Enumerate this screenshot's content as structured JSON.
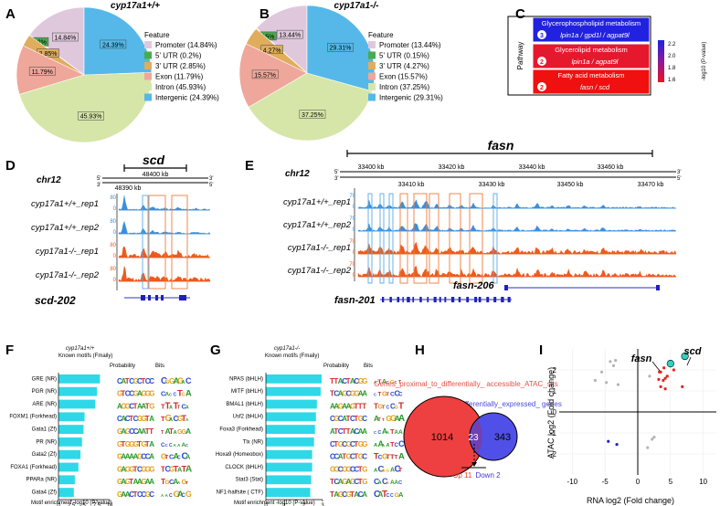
{
  "panels": {
    "A": {
      "letter": "A",
      "title": "cyp17a1+/+",
      "legend_title": "Feature",
      "slices": [
        {
          "label": "Promoter (14.84%)",
          "pct": 14.84,
          "slice_label": "14.84%",
          "color": "#dfc8dc"
        },
        {
          "label": "5' UTR (0.2%)",
          "pct": 0.2,
          "slice_label": "0.2%",
          "color": "#4aaa4e"
        },
        {
          "label": "3' UTR (2.85%)",
          "pct": 2.85,
          "slice_label": "2.85%",
          "color": "#e0ad5d"
        },
        {
          "label": "Exon (11.79%)",
          "pct": 11.79,
          "slice_label": "11.79%",
          "color": "#eea79a"
        },
        {
          "label": "Intron (45.93%)",
          "pct": 45.93,
          "slice_label": "45.93%",
          "color": "#d6e6a8"
        },
        {
          "label": "Intergenic (24.39%)",
          "pct": 24.39,
          "slice_label": "24.39%",
          "color": "#55b8e8"
        }
      ]
    },
    "B": {
      "letter": "B",
      "title": "cyp17a1-/-",
      "legend_title": "Feature",
      "slices": [
        {
          "label": "Promoter (13.44%)",
          "pct": 13.44,
          "slice_label": "13.44%",
          "color": "#dfc8dc"
        },
        {
          "label": "5' UTR (0.15%)",
          "pct": 0.15,
          "slice_label": "0.15%",
          "color": "#4aaa4e"
        },
        {
          "label": "3' UTR (4.27%)",
          "pct": 4.27,
          "slice_label": "4.27%",
          "color": "#e0ad5d"
        },
        {
          "label": "Exon (15.57%)",
          "pct": 15.57,
          "slice_label": "15.57%",
          "color": "#eea79a"
        },
        {
          "label": "Intron (37.25%)",
          "pct": 37.25,
          "slice_label": "37.25%",
          "color": "#d6e6a8"
        },
        {
          "label": "Intergenic (29.31%)",
          "pct": 29.31,
          "slice_label": "29.31%",
          "color": "#55b8e8"
        }
      ]
    },
    "C": {
      "letter": "C",
      "axis_label": "Pathway",
      "colorbar_label": "-log10 (P-value)",
      "colorbar_ticks": [
        "2.2",
        "2.0",
        "1.8",
        "1.6"
      ],
      "rows": [
        {
          "name": "Glycerophospholipid metabolism",
          "count": "3",
          "genes": "lpin1a / gpd1l / agpat9l",
          "color": "#2121e0"
        },
        {
          "name": "Glycerolipid metabolism",
          "count": "2",
          "genes": "lpin1a / agpat9l",
          "color": "#e6182e"
        },
        {
          "name": "Fatty acid metabolism",
          "count": "2",
          "genes": "fasn / scd",
          "color": "#f01010"
        }
      ]
    },
    "D": {
      "letter": "D",
      "gene": "scd",
      "chrom": "chr12",
      "coord_top": "48400 kb",
      "coord_bottom": "48390 kb",
      "strand_top": "5'",
      "strand_bottom": "3'",
      "tracks": [
        {
          "label": "cyp17a1+/+_rep1",
          "scale": "80",
          "color": "#3a8fdc"
        },
        {
          "label": "cyp17a1+/+_rep2",
          "scale": "80",
          "color": "#3a8fdc"
        },
        {
          "label": "cyp17a1-/-_rep1",
          "scale": "80",
          "color": "#ee5a1e"
        },
        {
          "label": "cyp17a1-/-_rep2",
          "scale": "80",
          "color": "#ee5a1e"
        }
      ],
      "transcript": "scd-202"
    },
    "E": {
      "letter": "E",
      "gene": "fasn",
      "chrom": "chr12",
      "top_ticks": [
        "33400 kb",
        "33420 kb",
        "33440 kb",
        "33460 kb"
      ],
      "bottom_ticks": [
        "33410 kb",
        "33430 kb",
        "33450 kb",
        "33470 kb"
      ],
      "strand_top": "5'",
      "strand_bottom": "3'",
      "tracks": [
        {
          "label": "cyp17a1+/+_rep1",
          "scale": "70",
          "color": "#3a8fdc"
        },
        {
          "label": "cyp17a1+/+_rep2",
          "scale": "70",
          "color": "#3a8fdc"
        },
        {
          "label": "cyp17a1-/-_rep1",
          "scale": "70",
          "color": "#ee5a1e"
        },
        {
          "label": "cyp17a1-/-_rep2",
          "scale": "70",
          "color": "#ee5a1e"
        }
      ],
      "transcripts": [
        "fasn-206",
        "fasn-201"
      ]
    },
    "F": {
      "letter": "F",
      "subtitle": "cyp17a1+/+",
      "col_header": "Known motifs (Fmaily)",
      "prob_header": "Probability",
      "bits_header": "Bits",
      "xlabel": "Motif enrichment -log10 (P-value)",
      "xticks": [
        "0",
        "2.5",
        "5",
        "7.5",
        "10"
      ],
      "xmax": 10,
      "motifs": [
        {
          "name": "GRE (NR)",
          "value": 8.1
        },
        {
          "name": "PGR (NR)",
          "value": 7.5
        },
        {
          "name": "ARE (NR)",
          "value": 7.2
        },
        {
          "name": "FOXM1 (Forkhead)",
          "value": 5.1
        },
        {
          "name": "Gata1 (Zf)",
          "value": 4.9
        },
        {
          "name": "PR (NR)",
          "value": 4.6
        },
        {
          "name": "Gata2 (Zf)",
          "value": 4.3
        },
        {
          "name": "FOXA1 (Forkhead)",
          "value": 3.9
        },
        {
          "name": "PPARa (NR)",
          "value": 3.2
        },
        {
          "name": "Gata4 (Zf)",
          "value": 3.0
        }
      ]
    },
    "G": {
      "letter": "G",
      "subtitle": "cyp17a1-/-",
      "col_header": "Known motifs (Fmaily)",
      "prob_header": "Probability",
      "bits_header": "Bits",
      "xlabel": "Motif enrichment -log10 (P-value)",
      "xticks": [
        "0",
        "1",
        "2",
        "3"
      ],
      "xmax": 3,
      "motifs": [
        {
          "name": "NPAS (bHLH)",
          "value": 2.95
        },
        {
          "name": "MITF (bHLH)",
          "value": 2.9
        },
        {
          "name": "BMAL1 (bHLH)",
          "value": 2.7
        },
        {
          "name": "Usf2 (bHLH)",
          "value": 2.65
        },
        {
          "name": "Foxa3 (Forkhead)",
          "value": 2.6
        },
        {
          "name": "Tlx (NR)",
          "value": 2.55
        },
        {
          "name": "Hoxa9 (Homeobox)",
          "value": 2.45
        },
        {
          "name": "CLOCK (bHLH)",
          "value": 2.45
        },
        {
          "name": "Stat3 (Stat)",
          "value": 2.4
        },
        {
          "name": "NF1-halfsite ( CTF)",
          "value": 2.35
        }
      ]
    },
    "H": {
      "letter": "H",
      "left_label": "Genes_proximal_to_differentially_ accessible_ATAC_sits",
      "right_label": "Differentially_expressed_ genes",
      "left_only": "1014",
      "overlap": "23",
      "right_only": "343",
      "up": "Up 11",
      "down": "Down 2"
    },
    "I": {
      "letter": "I",
      "xlabel": "RNA log2 (Fold change)",
      "ylabel": "ATAC log2 (Fold change)",
      "xticks": [
        "-10",
        "-5",
        "0",
        "5",
        "10"
      ],
      "yticks": [
        "2",
        "1",
        "0",
        "-1",
        "-2"
      ],
      "labels": [
        "fasn",
        "scd"
      ]
    }
  },
  "chart_data": [
    {
      "type": "pie",
      "title": "cyp17a1+/+",
      "categories": [
        "Promoter",
        "5' UTR",
        "3' UTR",
        "Exon",
        "Intron",
        "Intergenic"
      ],
      "values": [
        14.84,
        0.2,
        2.85,
        11.79,
        45.93,
        24.39
      ]
    },
    {
      "type": "pie",
      "title": "cyp17a1-/-",
      "categories": [
        "Promoter",
        "5' UTR",
        "3' UTR",
        "Exon",
        "Intron",
        "Intergenic"
      ],
      "values": [
        13.44,
        0.15,
        4.27,
        15.57,
        37.25,
        29.31
      ]
    },
    {
      "type": "bar",
      "title": "cyp17a1+/+ Known motifs",
      "categories": [
        "GRE (NR)",
        "PGR (NR)",
        "ARE (NR)",
        "FOXM1 (Forkhead)",
        "Gata1 (Zf)",
        "PR (NR)",
        "Gata2 (Zf)",
        "FOXA1 (Forkhead)",
        "PPARa (NR)",
        "Gata4 (Zf)"
      ],
      "values": [
        8.1,
        7.5,
        7.2,
        5.1,
        4.9,
        4.6,
        4.3,
        3.9,
        3.2,
        3.0
      ],
      "xlabel": "Motif enrichment -log10 (P-value)",
      "xlim": [
        0,
        10
      ]
    },
    {
      "type": "bar",
      "title": "cyp17a1-/- Known motifs",
      "categories": [
        "NPAS (bHLH)",
        "MITF (bHLH)",
        "BMAL1 (bHLH)",
        "Usf2 (bHLH)",
        "Foxa3 (Forkhead)",
        "Tlx (NR)",
        "Hoxa9 (Homeobox)",
        "CLOCK (bHLH)",
        "Stat3 (Stat)",
        "NF1-halfsite ( CTF)"
      ],
      "values": [
        2.95,
        2.9,
        2.7,
        2.65,
        2.6,
        2.55,
        2.45,
        2.45,
        2.4,
        2.35
      ],
      "xlabel": "Motif enrichment -log10 (P-value)",
      "xlim": [
        0,
        3
      ]
    },
    {
      "type": "scatter",
      "title": "RNA vs ATAC fold change",
      "xlabel": "RNA log2 (Fold change)",
      "ylabel": "ATAC log2 (Fold change)",
      "xlim": [
        -12,
        12
      ],
      "ylim": [
        -3,
        3
      ],
      "series": [
        {
          "name": "up",
          "color": "#e8221c",
          "points": [
            [
              3.5,
              1.9
            ],
            [
              4.0,
              2.1
            ],
            [
              4.2,
              1.6
            ],
            [
              3.2,
              1.55
            ],
            [
              3.9,
              1.5
            ],
            [
              5.5,
              2.0
            ],
            [
              4.2,
              1.1
            ],
            [
              6.8,
              1.2
            ],
            [
              3.5,
              1.2
            ],
            [
              4.5,
              1.7
            ],
            [
              3.3,
              1.9
            ]
          ]
        },
        {
          "name": "down",
          "color": "#2222cc",
          "points": [
            [
              -4.5,
              -1.4
            ],
            [
              -3.2,
              -1.55
            ]
          ]
        },
        {
          "name": "highlight",
          "color": "#2fd1c5",
          "points": [
            [
              5.0,
              2.3
            ],
            [
              7.2,
              2.65
            ]
          ]
        },
        {
          "name": "other",
          "color": "#b5b5b5",
          "points": [
            [
              -6.5,
              1.5
            ],
            [
              -5.5,
              1.9
            ],
            [
              -4.2,
              2.4
            ],
            [
              -3.7,
              2.2
            ],
            [
              -3.4,
              2.45
            ],
            [
              -3.0,
              1.3
            ],
            [
              1.8,
              1.7
            ],
            [
              2.2,
              -1.3
            ],
            [
              1.5,
              -1.7
            ],
            [
              2.5,
              -1.2
            ],
            [
              -4.8,
              1.4
            ]
          ]
        }
      ]
    }
  ]
}
